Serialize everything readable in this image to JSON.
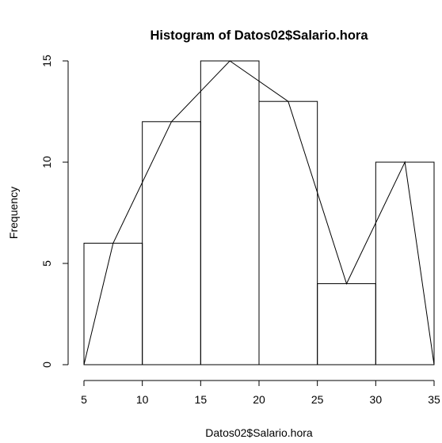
{
  "chart_data": {
    "type": "bar",
    "title": "Histogram of Datos02$Salario.hora",
    "xlabel": "Datos02$Salario.hora",
    "ylabel": "Frequency",
    "bins": [
      {
        "start": 5,
        "end": 10,
        "count": 6
      },
      {
        "start": 10,
        "end": 15,
        "count": 12
      },
      {
        "start": 15,
        "end": 20,
        "count": 15
      },
      {
        "start": 20,
        "end": 25,
        "count": 13
      },
      {
        "start": 25,
        "end": 30,
        "count": 4
      },
      {
        "start": 30,
        "end": 35,
        "count": 10
      }
    ],
    "polygon": {
      "x": [
        5,
        7.5,
        12.5,
        17.5,
        22.5,
        27.5,
        32.5,
        35
      ],
      "y": [
        0,
        6,
        12,
        15,
        13,
        4,
        10,
        0
      ]
    },
    "xlim": [
      5,
      35
    ],
    "ylim": [
      0,
      15
    ],
    "xticks": [
      5,
      10,
      15,
      20,
      25,
      30,
      35
    ],
    "yticks": [
      0,
      5,
      10,
      15
    ],
    "grid": false,
    "legend": "none"
  }
}
